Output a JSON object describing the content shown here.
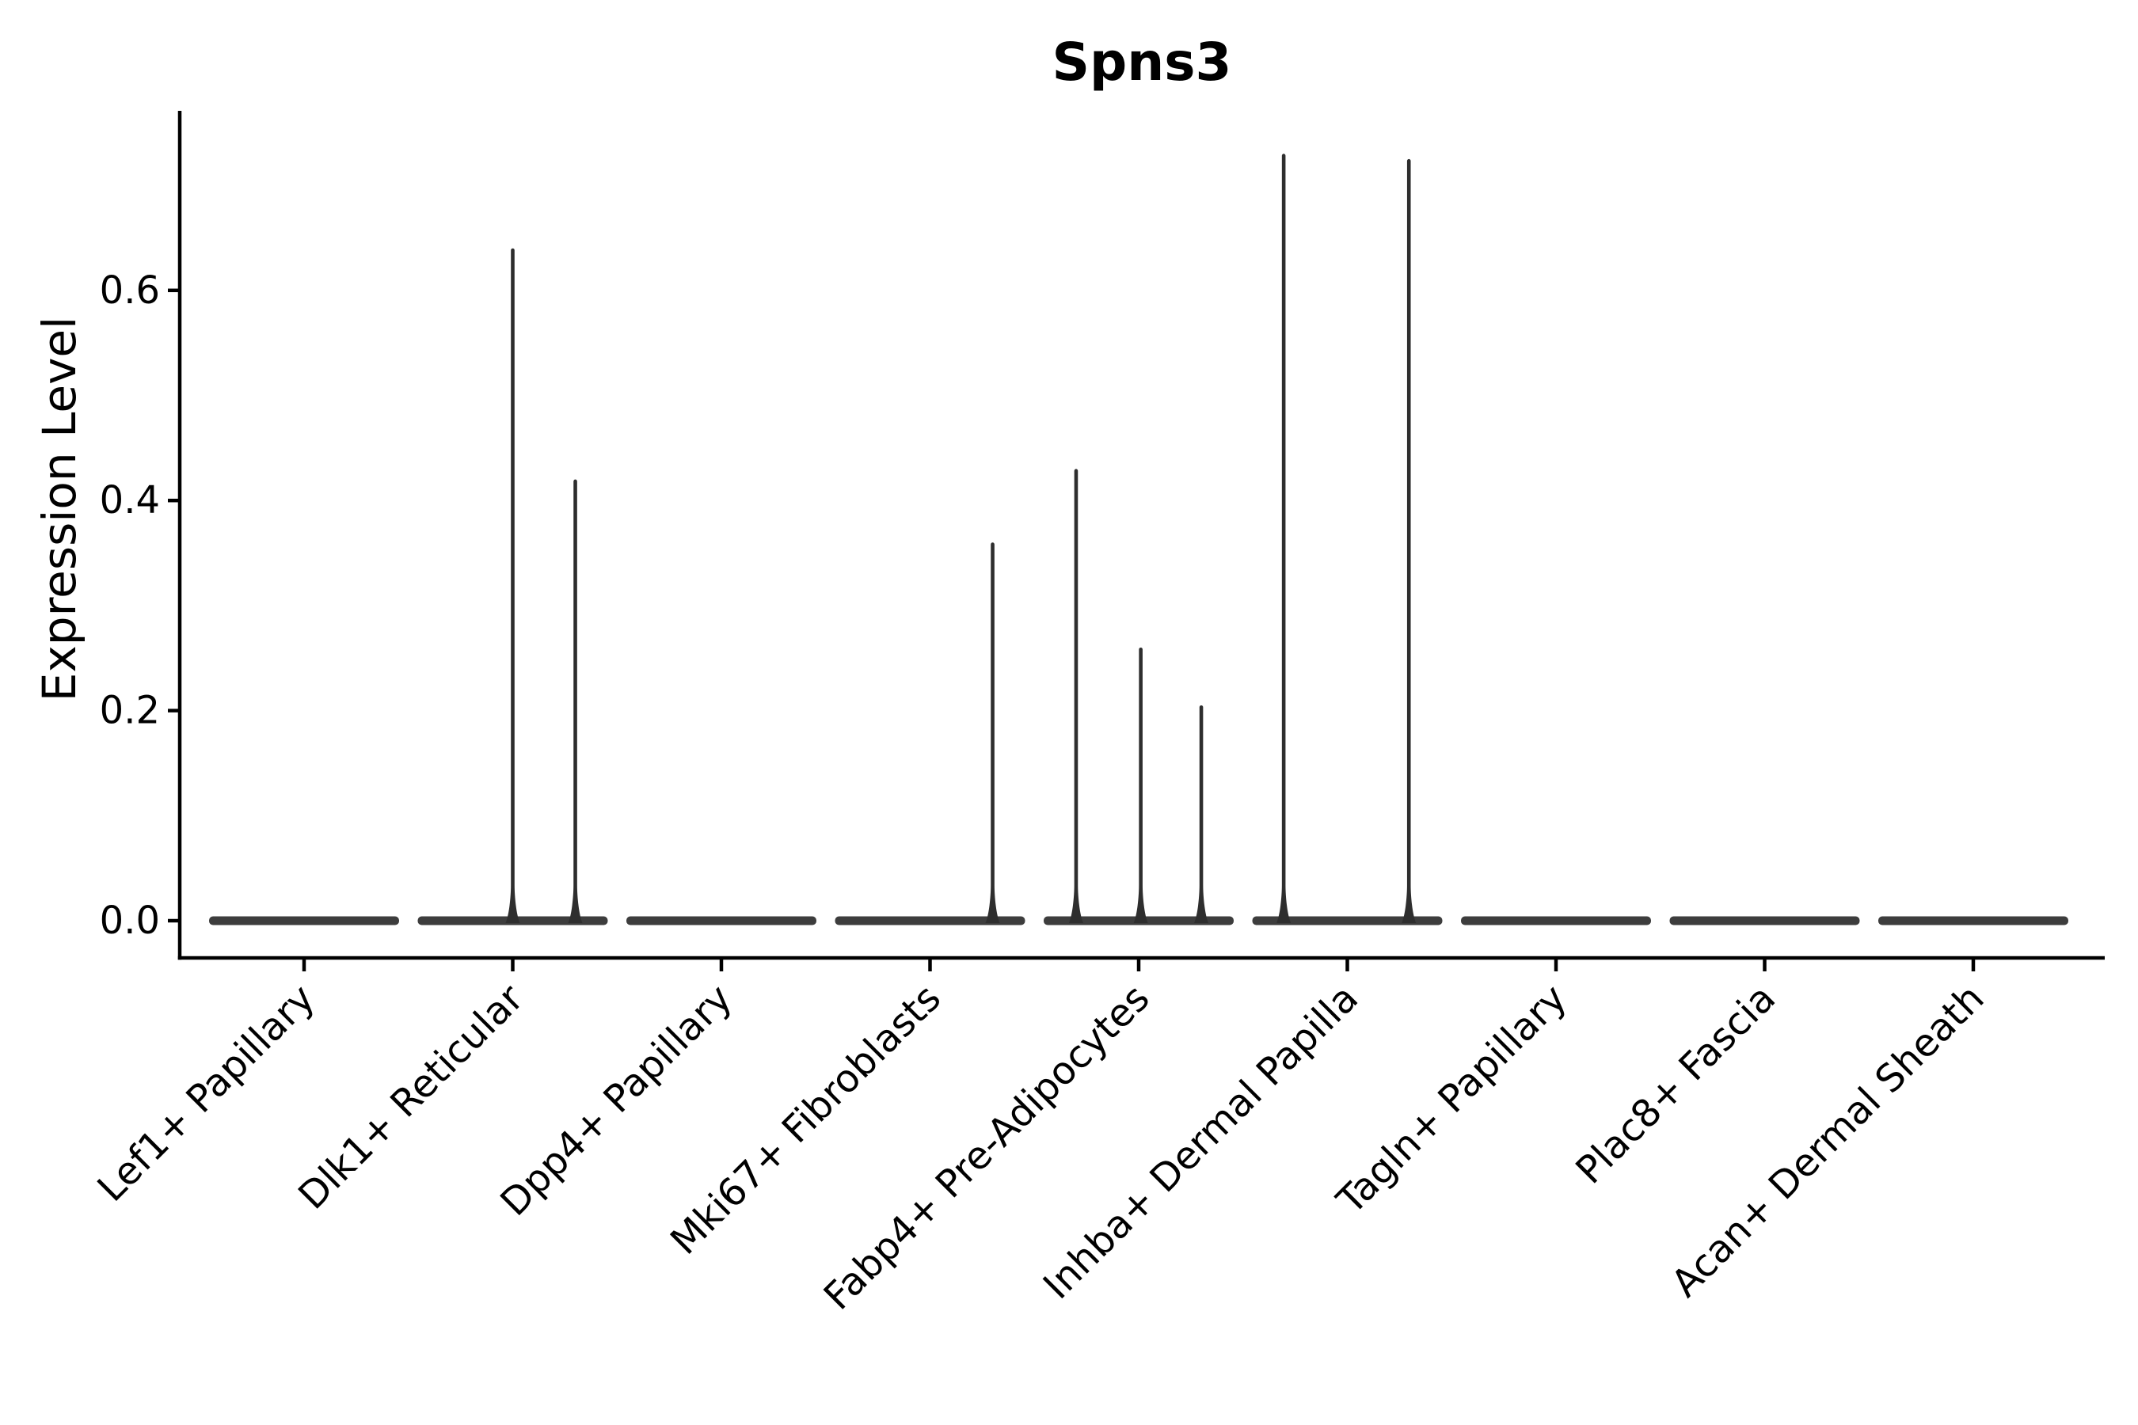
{
  "chart_data": {
    "type": "violin",
    "title": "Spns3",
    "xlabel": "",
    "ylabel": "Expression Level",
    "yticks": [
      "0.0",
      "0.2",
      "0.4",
      "0.6"
    ],
    "ytick_values": [
      0.0,
      0.2,
      0.4,
      0.6
    ],
    "ylim": [
      -0.035,
      0.771
    ],
    "grid": false,
    "legend": "none",
    "x_tick_rotation_deg": 45,
    "categories": [
      "Lef1+ Papillary",
      "Dlk1+ Reticular",
      "Dpp4+ Papillary",
      "Mki67+ Fibroblasts",
      "Fabp4+ Pre-Adipocytes",
      "Inhba+ Dermal Papilla",
      "Tagln+ Papillary",
      "Plac8+ Fascia",
      "Acan+ Dermal Sheath"
    ],
    "violins": [
      {
        "category": "Lef1+ Papillary",
        "baseline_value": 0.0,
        "spikes": []
      },
      {
        "category": "Dlk1+ Reticular",
        "baseline_value": 0.0,
        "spikes": [
          {
            "offset": 0.0,
            "value": 0.64
          },
          {
            "offset": 0.3,
            "value": 0.42
          }
        ]
      },
      {
        "category": "Dpp4+ Papillary",
        "baseline_value": 0.0,
        "spikes": []
      },
      {
        "category": "Mki67+ Fibroblasts",
        "baseline_value": 0.0,
        "spikes": [
          {
            "offset": 0.3,
            "value": 0.36
          }
        ]
      },
      {
        "category": "Fabp4+ Pre-Adipocytes",
        "baseline_value": 0.0,
        "spikes": [
          {
            "offset": -0.3,
            "value": 0.43
          },
          {
            "offset": 0.01,
            "value": 0.26
          },
          {
            "offset": 0.3,
            "value": 0.205
          }
        ]
      },
      {
        "category": "Inhba+ Dermal Papilla",
        "baseline_value": 0.0,
        "spikes": [
          {
            "offset": -0.305,
            "value": 0.73
          },
          {
            "offset": 0.295,
            "value": 0.725
          }
        ]
      },
      {
        "category": "Tagln+ Papillary",
        "baseline_value": 0.0,
        "spikes": []
      },
      {
        "category": "Plac8+ Fascia",
        "baseline_value": 0.0,
        "spikes": []
      },
      {
        "category": "Acan+ Dermal Sheath",
        "baseline_value": 0.0,
        "spikes": []
      }
    ],
    "colors": {
      "background": "#ffffff",
      "axis": "#000000",
      "text": "#000000",
      "violin_baseline": "#3d3d3d",
      "violin_spike": "#2e2e2e"
    }
  }
}
